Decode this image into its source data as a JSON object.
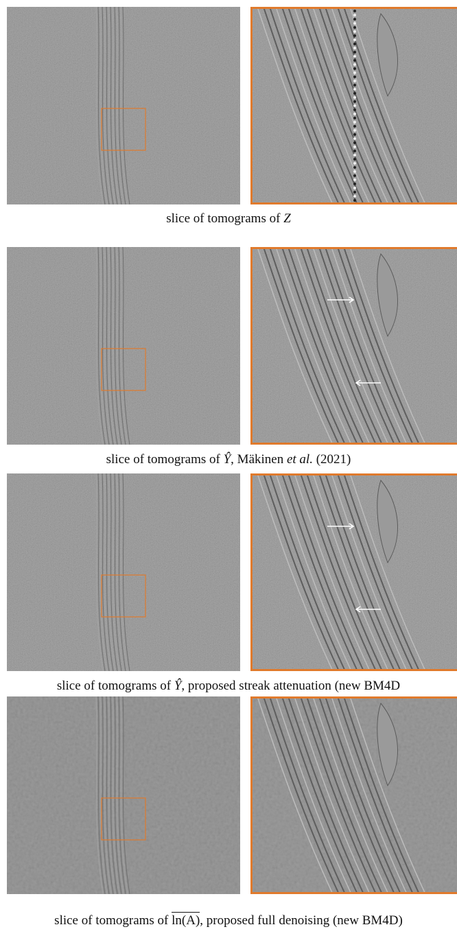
{
  "panels": [
    {
      "caption": [
        {
          "text": "slice of tomograms of "
        },
        {
          "text": "Z",
          "italic": true
        }
      ],
      "arrows": false,
      "smooth": false
    },
    {
      "caption": [
        {
          "text": "slice of tomograms of "
        },
        {
          "text": "Ŷ",
          "italic": true
        },
        {
          "text": ", Mäkinen "
        },
        {
          "text": "et al.",
          "italic": true
        },
        {
          "text": " (2021)"
        }
      ],
      "arrows": true,
      "smooth": false
    },
    {
      "caption": [
        {
          "text": "slice of tomograms of "
        },
        {
          "text": "Ŷ",
          "italic": true
        },
        {
          "text": ", proposed streak attenuation (new BM4D"
        }
      ],
      "arrows": true,
      "smooth": false
    },
    {
      "caption": [
        {
          "text": "slice of tomograms of "
        },
        {
          "text": "ln(A)",
          "overline": true
        },
        {
          "text": ", proposed full denoising (new BM4D)"
        }
      ],
      "arrows": false,
      "smooth": true
    }
  ]
}
